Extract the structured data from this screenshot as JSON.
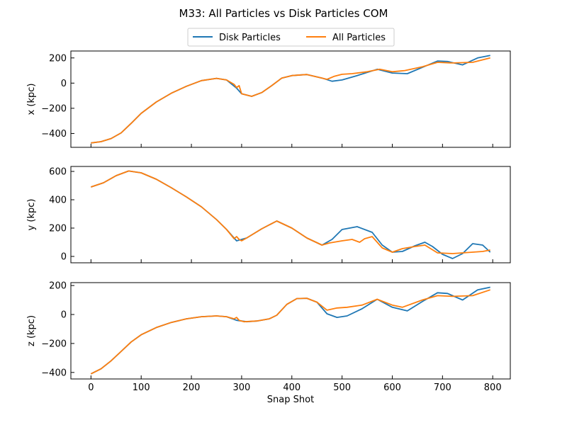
{
  "chart_data": {
    "type": "line",
    "title": "M33: All Particles vs Disk Particles COM",
    "xlabel": "Snap Shot",
    "xlim": [
      -40,
      835
    ],
    "x_ticks": [
      0,
      100,
      200,
      300,
      400,
      500,
      600,
      700,
      800
    ],
    "legend": {
      "placement": "top-center",
      "entries": [
        "Disk Particles",
        "All Particles"
      ]
    },
    "series_styles": [
      {
        "name": "Disk Particles",
        "color": "#1f77b4",
        "dash": "solid"
      },
      {
        "name": "All Particles",
        "color": "#ff7f0e",
        "dash": "solid-then-dashed-after-470"
      }
    ],
    "panels": [
      {
        "ylabel": "x (kpc)",
        "ylim": [
          -510,
          255
        ],
        "y_ticks": [
          -400,
          -200,
          0,
          200
        ],
        "series": [
          {
            "name": "Disk Particles",
            "x": [
              0,
              20,
              40,
              60,
              80,
              100,
              130,
              160,
              190,
              220,
              250,
              270,
              290,
              300,
              320,
              340,
              360,
              380,
              400,
              430,
              460,
              480,
              500,
              530,
              570,
              600,
              630,
              660,
              690,
              710,
              740,
              770,
              795
            ],
            "y": [
              -475,
              -465,
              -440,
              -395,
              -320,
              -240,
              -150,
              -80,
              -25,
              20,
              38,
              25,
              -40,
              -85,
              -105,
              -75,
              -20,
              40,
              60,
              68,
              40,
              15,
              25,
              60,
              110,
              80,
              75,
              125,
              175,
              172,
              145,
              200,
              220
            ]
          },
          {
            "name": "All Particles",
            "x": [
              0,
              20,
              40,
              60,
              80,
              100,
              130,
              160,
              190,
              220,
              250,
              270,
              285,
              290,
              295,
              300,
              320,
              340,
              360,
              380,
              400,
              430,
              460,
              470,
              485,
              500,
              520,
              550,
              575,
              600,
              625,
              660,
              690,
              720,
              760,
              795
            ],
            "y": [
              -475,
              -465,
              -440,
              -395,
              -320,
              -240,
              -150,
              -80,
              -25,
              20,
              38,
              25,
              -10,
              -35,
              -20,
              -85,
              -105,
              -75,
              -20,
              40,
              60,
              68,
              40,
              30,
              55,
              70,
              75,
              90,
              110,
              90,
              100,
              130,
              165,
              160,
              165,
              200
            ]
          }
        ]
      },
      {
        "ylabel": "y (kpc)",
        "ylim": [
          -45,
          635
        ],
        "y_ticks": [
          0,
          200,
          400,
          600
        ],
        "series": [
          {
            "name": "Disk Particles",
            "x": [
              0,
              25,
              50,
              75,
              100,
              130,
              160,
              190,
              220,
              250,
              270,
              290,
              310,
              340,
              370,
              400,
              430,
              460,
              480,
              500,
              530,
              560,
              580,
              600,
              620,
              645,
              665,
              680,
              700,
              720,
              740,
              760,
              780,
              795
            ],
            "y": [
              490,
              520,
              570,
              603,
              590,
              545,
              485,
              420,
              350,
              260,
              190,
              110,
              130,
              195,
              250,
              200,
              130,
              80,
              120,
              190,
              210,
              170,
              80,
              30,
              35,
              75,
              100,
              70,
              15,
              -15,
              20,
              90,
              80,
              30
            ]
          },
          {
            "name": "All Particles",
            "x": [
              0,
              25,
              50,
              75,
              100,
              130,
              160,
              190,
              220,
              250,
              270,
              285,
              290,
              295,
              300,
              310,
              340,
              370,
              400,
              430,
              460,
              475,
              500,
              520,
              535,
              545,
              560,
              580,
              600,
              620,
              645,
              665,
              690,
              720,
              740,
              780,
              795
            ],
            "y": [
              490,
              520,
              570,
              603,
              590,
              545,
              485,
              420,
              350,
              260,
              190,
              125,
              140,
              120,
              110,
              130,
              195,
              250,
              200,
              130,
              80,
              95,
              110,
              120,
              100,
              125,
              140,
              60,
              30,
              55,
              70,
              80,
              25,
              20,
              25,
              35,
              45
            ]
          }
        ]
      },
      {
        "ylabel": "z (kpc)",
        "ylim": [
          -445,
          220
        ],
        "y_ticks": [
          -400,
          -200,
          0,
          200
        ],
        "series": [
          {
            "name": "Disk Particles",
            "x": [
              0,
              20,
              40,
              60,
              80,
              100,
              130,
              160,
              190,
              220,
              250,
              270,
              290,
              310,
              330,
              355,
              370,
              390,
              410,
              430,
              450,
              470,
              490,
              510,
              540,
              570,
              600,
              630,
              660,
              690,
              710,
              740,
              770,
              795
            ],
            "y": [
              -410,
              -375,
              -320,
              -255,
              -190,
              -140,
              -90,
              -55,
              -30,
              -15,
              -10,
              -15,
              -40,
              -50,
              -45,
              -30,
              -5,
              70,
              110,
              112,
              85,
              5,
              -20,
              -10,
              40,
              105,
              50,
              25,
              90,
              150,
              145,
              100,
              170,
              188
            ]
          },
          {
            "name": "All Particles",
            "x": [
              0,
              20,
              40,
              60,
              80,
              100,
              130,
              160,
              190,
              220,
              250,
              270,
              285,
              290,
              295,
              305,
              330,
              355,
              370,
              390,
              410,
              430,
              450,
              470,
              490,
              510,
              540,
              570,
              600,
              620,
              660,
              690,
              720,
              760,
              795
            ],
            "y": [
              -410,
              -375,
              -320,
              -255,
              -190,
              -140,
              -90,
              -55,
              -30,
              -15,
              -10,
              -15,
              -30,
              -20,
              -40,
              -50,
              -45,
              -30,
              -5,
              70,
              110,
              112,
              85,
              30,
              45,
              50,
              65,
              105,
              65,
              50,
              100,
              130,
              125,
              130,
              170
            ]
          }
        ]
      }
    ]
  }
}
